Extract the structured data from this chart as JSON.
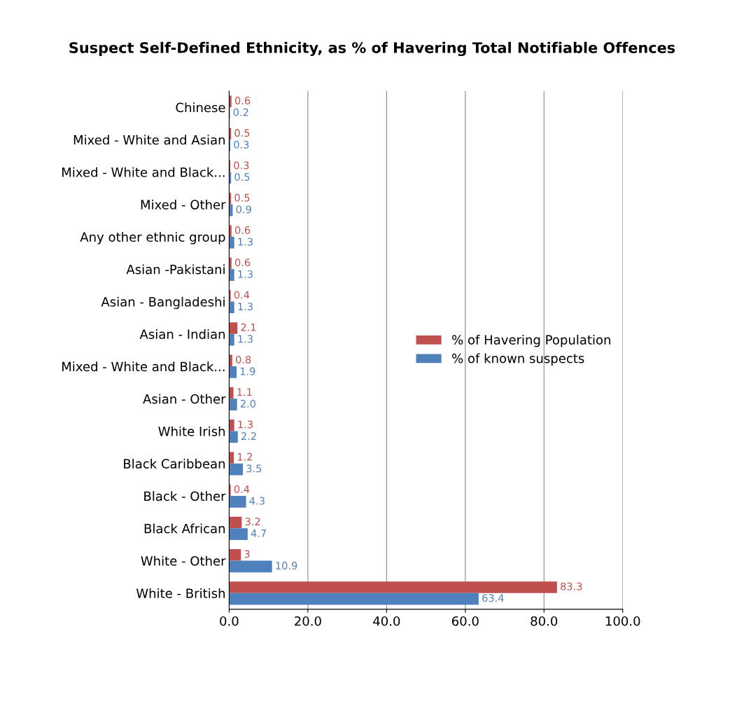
{
  "chart_data": {
    "type": "bar",
    "orientation": "horizontal",
    "title": "Suspect Self-Defined Ethnicity, as % of Havering Total Notifiable Offences",
    "categories": [
      "Chinese",
      "Mixed - White and Asian",
      "Mixed - White and Black...",
      "Mixed - Other",
      "Any other ethnic group",
      "Asian -Pakistani",
      "Asian - Bangladeshi",
      "Asian - Indian",
      "Mixed - White and Black...",
      "Asian - Other",
      "White Irish",
      "Black Caribbean",
      "Black - Other",
      "Black African",
      "White - Other",
      "White - British"
    ],
    "series": [
      {
        "name": "% of Havering Population",
        "color": "#c0504d",
        "values": [
          0.6,
          0.5,
          0.3,
          0.5,
          0.6,
          0.6,
          0.4,
          2.1,
          0.8,
          1.1,
          1.3,
          1.2,
          0.4,
          3.2,
          3,
          83.3
        ],
        "value_labels": [
          "0.6",
          "0.5",
          "0.3",
          "0.5",
          "0.6",
          "0.6",
          "0.4",
          "2.1",
          "0.8",
          "1.1",
          "1.3",
          "1.2",
          "0.4",
          "3.2",
          "3",
          "83.3"
        ]
      },
      {
        "name": "% of known suspects",
        "color": "#4f81bd",
        "values": [
          0.2,
          0.3,
          0.5,
          0.9,
          1.3,
          1.3,
          1.3,
          1.3,
          1.9,
          2.0,
          2.2,
          3.5,
          4.3,
          4.7,
          10.9,
          63.4
        ],
        "value_labels": [
          "0.2",
          "0.3",
          "0.5",
          "0.9",
          "1.3",
          "1.3",
          "1.3",
          "1.3",
          "1.9",
          "2.0",
          "2.2",
          "3.5",
          "4.3",
          "4.7",
          "10.9",
          "63.4"
        ]
      }
    ],
    "xlim": [
      0,
      100
    ],
    "xticks": [
      {
        "value": 0,
        "label": "0.0"
      },
      {
        "value": 20,
        "label": "20.0"
      },
      {
        "value": 40,
        "label": "40.0"
      },
      {
        "value": 60,
        "label": "60.0"
      },
      {
        "value": 80,
        "label": "80.0"
      },
      {
        "value": 100,
        "label": "100.0"
      }
    ],
    "grid": "x",
    "legend": "right"
  }
}
